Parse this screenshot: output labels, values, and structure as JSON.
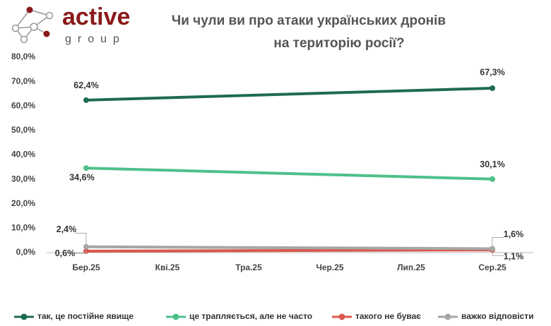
{
  "logo": {
    "name": "active",
    "tagline": "group"
  },
  "chart_data": {
    "type": "line",
    "title": [
      "Чи чули ви про атаки українських дронів",
      "на територію росії?"
    ],
    "xticks": [
      "Бер.25",
      "Кві.25",
      "Тра.25",
      "Чер.25",
      "Лип.25",
      "Сер.25"
    ],
    "categories": [
      "Бер.25",
      "Сер.25"
    ],
    "ylim": [
      0,
      80
    ],
    "yticks": [
      {
        "value": 0,
        "label": "0,0%"
      },
      {
        "value": 10,
        "label": "10,0%"
      },
      {
        "value": 20,
        "label": "20,0%"
      },
      {
        "value": 30,
        "label": "30,0%"
      },
      {
        "value": 40,
        "label": "40,0%"
      },
      {
        "value": 50,
        "label": "50,0%"
      },
      {
        "value": 60,
        "label": "60,0%"
      },
      {
        "value": 70,
        "label": "70,0%"
      },
      {
        "value": 80,
        "label": "80,0%"
      }
    ],
    "series": [
      {
        "name": "так, це постійне явище",
        "color": "#1e6b52",
        "values": [
          62.4,
          67.3
        ],
        "value_labels": [
          "62,4%",
          "67,3%"
        ]
      },
      {
        "name": "це трапляється, але не часто",
        "color": "#4fc08b",
        "values": [
          34.6,
          30.1
        ],
        "value_labels": [
          "34,6%",
          "30,1%"
        ]
      },
      {
        "name": "такого не буває",
        "color": "#d9584c",
        "values": [
          0.6,
          1.1
        ],
        "value_labels": [
          "0,6%",
          "1,1%"
        ]
      },
      {
        "name": "важко відповісти",
        "color": "#a6a6a6",
        "values": [
          2.4,
          1.6
        ],
        "value_labels": [
          "2,4%",
          "1,6%"
        ]
      }
    ]
  }
}
